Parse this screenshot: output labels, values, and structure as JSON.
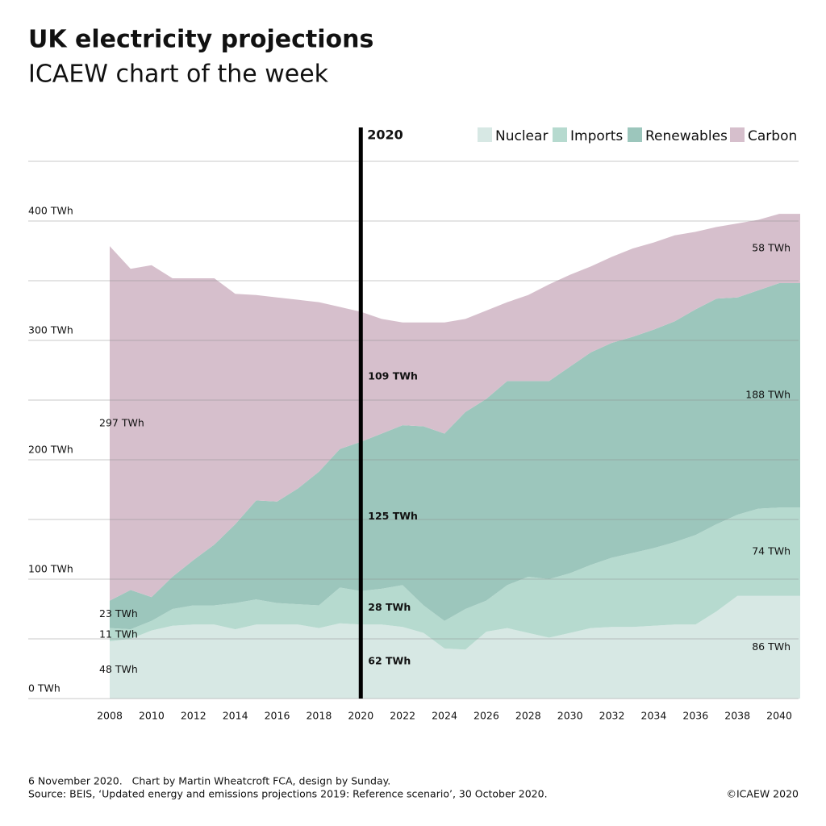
{
  "chart_data": {
    "type": "stacked-area",
    "title": "UK electricity projections",
    "subtitle": "ICAEW chart of the week",
    "x": [
      2008,
      2009,
      2010,
      2011,
      2012,
      2013,
      2014,
      2015,
      2016,
      2017,
      2018,
      2019,
      2020,
      2021,
      2022,
      2023,
      2024,
      2025,
      2026,
      2027,
      2028,
      2029,
      2030,
      2031,
      2032,
      2033,
      2034,
      2035,
      2036,
      2037,
      2038,
      2039,
      2040,
      2041
    ],
    "xlim": [
      2008,
      2041
    ],
    "xticks": [
      2008,
      2010,
      2012,
      2014,
      2016,
      2018,
      2020,
      2022,
      2024,
      2026,
      2028,
      2030,
      2032,
      2034,
      2036,
      2038,
      2040
    ],
    "ylim": [
      0,
      450
    ],
    "yticks": [
      {
        "value": 0,
        "label": "0 TWh"
      },
      {
        "value": 100,
        "label": "100 TWh"
      },
      {
        "value": 200,
        "label": "200 TWh"
      },
      {
        "value": 300,
        "label": "300 TWh"
      },
      {
        "value": 400,
        "label": "400 TWh"
      }
    ],
    "minor_gridlines": [
      50,
      150,
      250,
      350,
      450
    ],
    "grid": true,
    "marker_line": {
      "value": 2020,
      "label": "2020"
    },
    "legend_position": "top-right",
    "series": [
      {
        "name": "Nuclear",
        "color": "#d7e8e4",
        "values": [
          48,
          50,
          57,
          61,
          62,
          62,
          58,
          62,
          62,
          62,
          59,
          63,
          62,
          62,
          60,
          55,
          42,
          41,
          56,
          59,
          55,
          51,
          55,
          59,
          60,
          60,
          61,
          62,
          62,
          73,
          86,
          86,
          86,
          86
        ],
        "value_labels": [
          "48 TWh",
          null,
          null,
          null,
          null,
          null,
          null,
          null,
          null,
          null,
          null,
          null,
          "62 TWh",
          null,
          null,
          null,
          null,
          null,
          null,
          null,
          null,
          null,
          null,
          null,
          null,
          null,
          null,
          null,
          null,
          null,
          null,
          null,
          "86 TWh",
          null
        ]
      },
      {
        "name": "Imports",
        "color": "#b6dacf",
        "values": [
          11,
          8,
          8,
          14,
          16,
          16,
          22,
          21,
          18,
          17,
          19,
          30,
          28,
          30,
          35,
          23,
          23,
          34,
          26,
          36,
          47,
          49,
          50,
          53,
          58,
          62,
          65,
          69,
          75,
          73,
          68,
          73,
          74,
          74
        ],
        "value_labels": [
          "11 TWh",
          null,
          null,
          null,
          null,
          null,
          null,
          null,
          null,
          null,
          null,
          null,
          "28 TWh",
          null,
          null,
          null,
          null,
          null,
          null,
          null,
          null,
          null,
          null,
          null,
          null,
          null,
          null,
          null,
          null,
          null,
          null,
          null,
          "74 TWh",
          null
        ]
      },
      {
        "name": "Renewables",
        "color": "#9cc6bc",
        "values": [
          23,
          33,
          20,
          27,
          38,
          51,
          66,
          83,
          85,
          97,
          112,
          116,
          125,
          130,
          134,
          150,
          157,
          165,
          169,
          171,
          164,
          166,
          173,
          178,
          180,
          181,
          183,
          185,
          189,
          189,
          182,
          183,
          188,
          188
        ],
        "value_labels": [
          "23 TWh",
          null,
          null,
          null,
          null,
          null,
          null,
          null,
          null,
          null,
          null,
          null,
          "125 TWh",
          null,
          null,
          null,
          null,
          null,
          null,
          null,
          null,
          null,
          null,
          null,
          null,
          null,
          null,
          null,
          null,
          null,
          null,
          null,
          "188 TWh",
          null
        ]
      },
      {
        "name": "Carbon",
        "color": "#d6bfcc",
        "values": [
          297,
          269,
          278,
          250,
          236,
          223,
          193,
          172,
          171,
          158,
          142,
          119,
          109,
          96,
          86,
          87,
          93,
          78,
          74,
          66,
          72,
          81,
          77,
          72,
          72,
          74,
          73,
          72,
          65,
          60,
          62,
          59,
          58,
          58
        ],
        "value_labels": [
          "297 TWh",
          null,
          null,
          null,
          null,
          null,
          null,
          null,
          null,
          null,
          null,
          null,
          "109 TWh",
          null,
          null,
          null,
          null,
          null,
          null,
          null,
          null,
          null,
          null,
          null,
          null,
          null,
          null,
          null,
          null,
          null,
          null,
          null,
          "58 TWh",
          null
        ]
      }
    ],
    "footnote": "6 November 2020.   Chart by Martin Wheatcroft FCA, design by Sunday.",
    "source": "Source: BEIS, ‘Updated energy and emissions projections 2019: Reference scenario’, 30 October 2020.",
    "copyright": "©ICAEW 2020"
  }
}
